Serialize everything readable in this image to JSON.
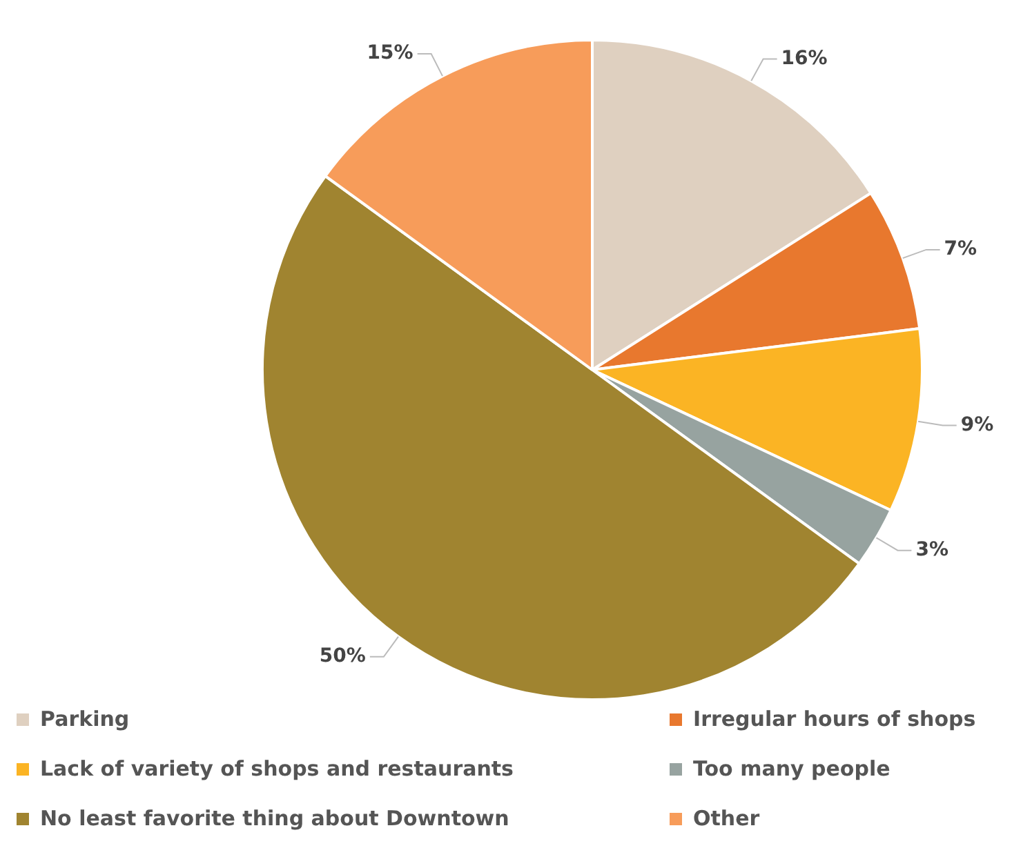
{
  "chart_data": {
    "type": "pie",
    "categories": [
      "Parking",
      "Irregular hours of shops",
      "Lack of variety of shops and restaurants",
      "Too many people",
      "No least favorite thing about Downtown",
      "Other"
    ],
    "values": [
      16,
      7,
      9,
      3,
      50,
      15
    ],
    "colors": [
      "#dfd0c0",
      "#e8782e",
      "#fbb424",
      "#97a3a0",
      "#a08430",
      "#f79c5a"
    ],
    "value_labels": [
      "16%",
      "7%",
      "9%",
      "3%",
      "50%",
      "15%"
    ],
    "legend": "bottom"
  }
}
